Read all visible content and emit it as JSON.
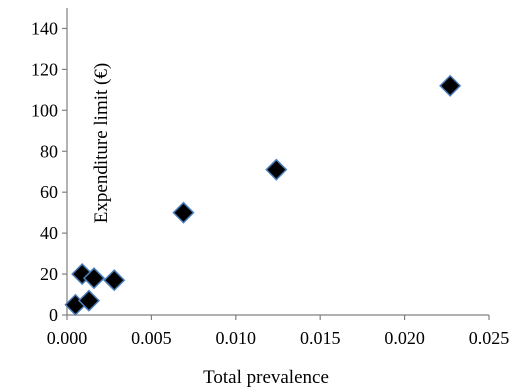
{
  "chart_data": {
    "type": "scatter",
    "title": "",
    "xlabel": "Total prevalence",
    "ylabel": "Expenditure limit (€)",
    "xlim": [
      0,
      0.025
    ],
    "ylim": [
      0,
      150
    ],
    "xticks": [
      "0.000",
      "0.005",
      "0.010",
      "0.015",
      "0.020",
      "0.025"
    ],
    "yticks": [
      "0",
      "20",
      "40",
      "60",
      "80",
      "100",
      "120",
      "140"
    ],
    "xtick_values": [
      0,
      0.005,
      0.01,
      0.015,
      0.02,
      0.025
    ],
    "ytick_values": [
      0,
      20,
      40,
      60,
      80,
      100,
      120,
      140
    ],
    "grid": false,
    "legend": "none",
    "marker": "diamond",
    "marker_fill": "#000000",
    "marker_edge": "#4a7ebb",
    "points": [
      {
        "x": 0.0005,
        "y": 5
      },
      {
        "x": 0.0013,
        "y": 7
      },
      {
        "x": 0.0009,
        "y": 20
      },
      {
        "x": 0.0016,
        "y": 18
      },
      {
        "x": 0.0028,
        "y": 17
      },
      {
        "x": 0.0069,
        "y": 50
      },
      {
        "x": 0.0124,
        "y": 71
      },
      {
        "x": 0.0227,
        "y": 112
      }
    ]
  }
}
